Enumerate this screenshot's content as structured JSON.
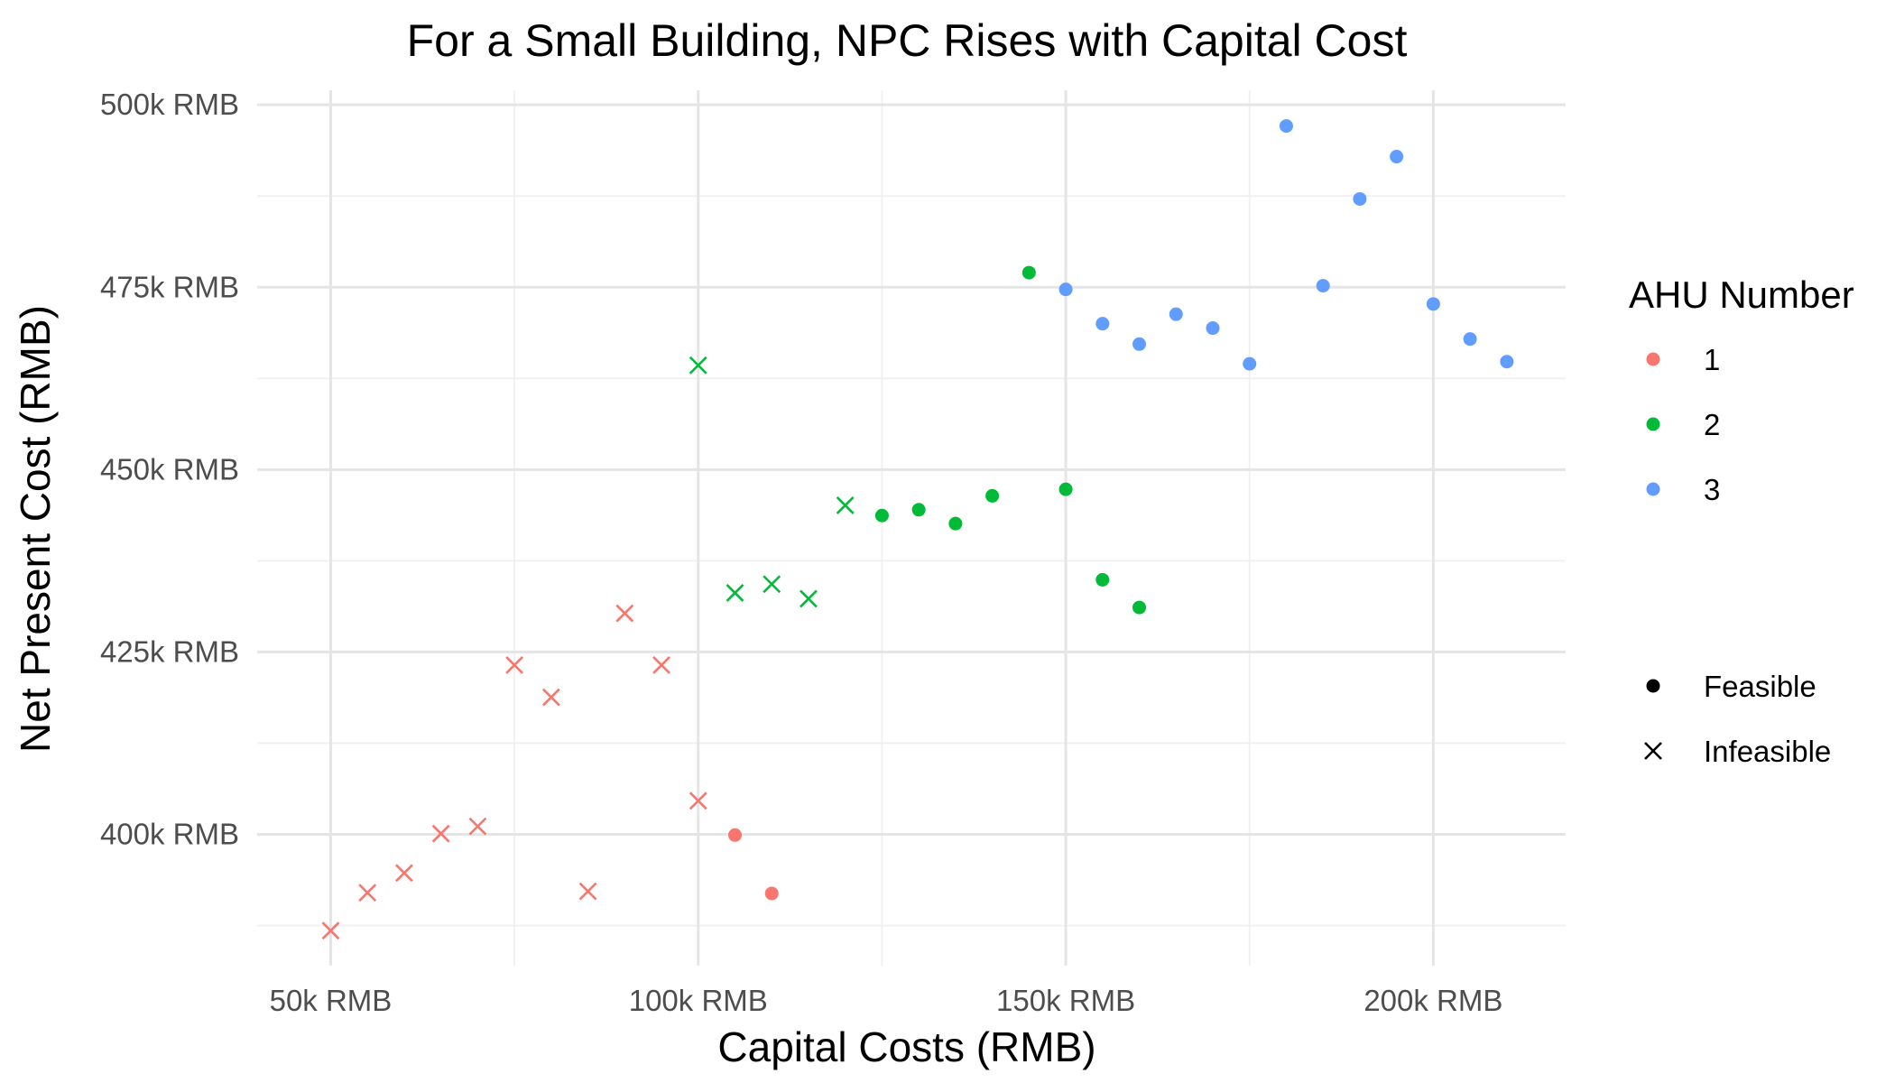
{
  "chart_data": {
    "type": "scatter",
    "title": "For a Small Building, NPC Rises with Capital Cost",
    "xlabel": "Capital Costs (RMB)",
    "ylabel": "Net Present Cost (RMB)",
    "xlim": [
      40000,
      218000
    ],
    "ylim": [
      382000,
      502000
    ],
    "x_ticks": [
      50000,
      100000,
      150000,
      200000
    ],
    "x_tick_labels": [
      "50k RMB",
      "100k RMB",
      "150k RMB",
      "200k RMB"
    ],
    "x_minor_ticks": [
      75000,
      125000,
      175000
    ],
    "y_ticks": [
      400000,
      425000,
      450000,
      475000,
      500000
    ],
    "y_tick_labels": [
      "400k RMB",
      "425k RMB",
      "450k RMB",
      "475k RMB",
      "500k RMB"
    ],
    "y_minor_ticks": [
      387500,
      412500,
      437500,
      462500,
      487500
    ],
    "grid": true,
    "legend": {
      "placement": "right",
      "color_title": "AHU Number",
      "color_entries": [
        {
          "label": "1",
          "color": "#F8766D"
        },
        {
          "label": "2",
          "color": "#00BA38"
        },
        {
          "label": "3",
          "color": "#619CFF"
        }
      ],
      "shape_entries": [
        {
          "label": "Feasible",
          "shape": "circle"
        },
        {
          "label": "Infeasible",
          "shape": "cross"
        }
      ]
    },
    "series": [
      {
        "name": "1",
        "color": "#F8766D",
        "points": [
          {
            "x": 50000,
            "y": 386800,
            "feasible": false
          },
          {
            "x": 55000,
            "y": 392000,
            "feasible": false
          },
          {
            "x": 60000,
            "y": 394700,
            "feasible": false
          },
          {
            "x": 65000,
            "y": 400100,
            "feasible": false
          },
          {
            "x": 70000,
            "y": 401100,
            "feasible": false
          },
          {
            "x": 75000,
            "y": 423200,
            "feasible": false
          },
          {
            "x": 80000,
            "y": 418800,
            "feasible": false
          },
          {
            "x": 85000,
            "y": 392200,
            "feasible": false
          },
          {
            "x": 90000,
            "y": 430300,
            "feasible": false
          },
          {
            "x": 95000,
            "y": 423200,
            "feasible": false
          },
          {
            "x": 100000,
            "y": 404600,
            "feasible": false
          },
          {
            "x": 105000,
            "y": 399900,
            "feasible": true
          },
          {
            "x": 110000,
            "y": 391900,
            "feasible": true
          }
        ]
      },
      {
        "name": "2",
        "color": "#00BA38",
        "points": [
          {
            "x": 100000,
            "y": 464300,
            "feasible": false
          },
          {
            "x": 105000,
            "y": 433100,
            "feasible": false
          },
          {
            "x": 110000,
            "y": 434300,
            "feasible": false
          },
          {
            "x": 115000,
            "y": 432300,
            "feasible": false
          },
          {
            "x": 120000,
            "y": 445100,
            "feasible": false
          },
          {
            "x": 125000,
            "y": 443700,
            "feasible": true
          },
          {
            "x": 130000,
            "y": 444500,
            "feasible": true
          },
          {
            "x": 135000,
            "y": 442600,
            "feasible": true
          },
          {
            "x": 140000,
            "y": 446400,
            "feasible": true
          },
          {
            "x": 145000,
            "y": 477000,
            "feasible": true
          },
          {
            "x": 150000,
            "y": 447300,
            "feasible": true
          },
          {
            "x": 155000,
            "y": 434900,
            "feasible": true
          },
          {
            "x": 160000,
            "y": 431100,
            "feasible": true
          }
        ]
      },
      {
        "name": "3",
        "color": "#619CFF",
        "points": [
          {
            "x": 150000,
            "y": 474700,
            "feasible": true
          },
          {
            "x": 155000,
            "y": 470000,
            "feasible": true
          },
          {
            "x": 160000,
            "y": 467200,
            "feasible": true
          },
          {
            "x": 165000,
            "y": 471300,
            "feasible": true
          },
          {
            "x": 170000,
            "y": 469400,
            "feasible": true
          },
          {
            "x": 175000,
            "y": 464500,
            "feasible": true
          },
          {
            "x": 180000,
            "y": 497100,
            "feasible": true
          },
          {
            "x": 185000,
            "y": 475200,
            "feasible": true
          },
          {
            "x": 190000,
            "y": 487100,
            "feasible": true
          },
          {
            "x": 195000,
            "y": 492900,
            "feasible": true
          },
          {
            "x": 200000,
            "y": 472700,
            "feasible": true
          },
          {
            "x": 205000,
            "y": 467900,
            "feasible": true
          },
          {
            "x": 210000,
            "y": 464800,
            "feasible": true
          }
        ]
      }
    ]
  }
}
